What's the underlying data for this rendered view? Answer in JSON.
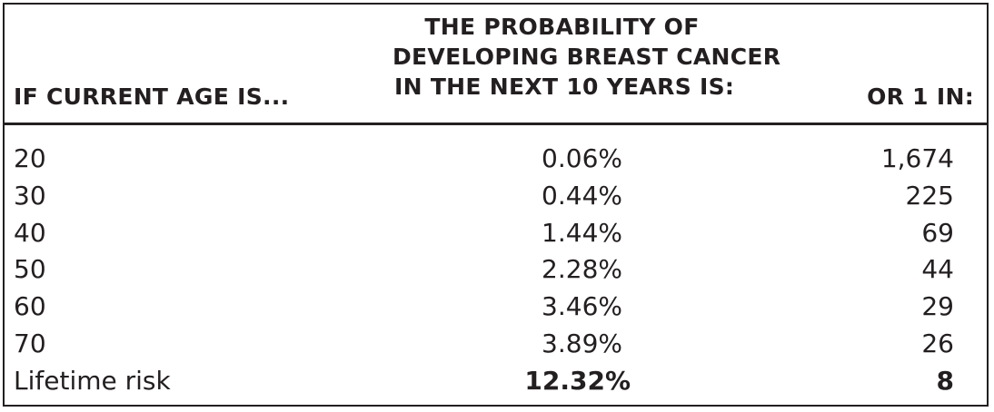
{
  "headers": {
    "age": "IF CURRENT AGE IS...",
    "probability_lines": [
      "THE PROBABILITY OF",
      "DEVELOPING BREAST CANCER",
      "IN THE NEXT 10 YEARS IS:"
    ],
    "or_one_in": "OR 1 IN:"
  },
  "rows": [
    {
      "age": "20",
      "probability": "0.06%",
      "one_in": "1,674"
    },
    {
      "age": "30",
      "probability": "0.44%",
      "one_in": "225"
    },
    {
      "age": "40",
      "probability": "1.44%",
      "one_in": "69"
    },
    {
      "age": "50",
      "probability": "2.28%",
      "one_in": "44"
    },
    {
      "age": "60",
      "probability": "3.46%",
      "one_in": "29"
    },
    {
      "age": "70",
      "probability": "3.89%",
      "one_in": "26"
    },
    {
      "age": "Lifetime risk",
      "probability": "12.32%",
      "one_in": "8"
    }
  ]
}
